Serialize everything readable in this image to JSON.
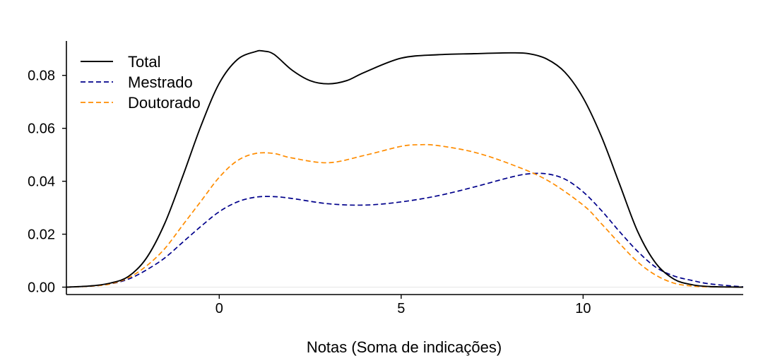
{
  "chart_data": {
    "type": "line",
    "title": "",
    "xlabel": "Notas (Soma de indicações)",
    "ylabel": "",
    "xlim": [
      -4.2,
      14.4
    ],
    "ylim": [
      -0.002,
      0.093
    ],
    "xticks": [
      0,
      5,
      10
    ],
    "xtick_labels": [
      "0",
      "5",
      "10"
    ],
    "yticks": [
      0.0,
      0.02,
      0.04,
      0.06,
      0.08
    ],
    "ytick_labels": [
      "0.00",
      "0.02",
      "0.04",
      "0.06",
      "0.08"
    ],
    "grid": false,
    "legend": "top-left",
    "series": [
      {
        "name": "Total",
        "color": "#000000",
        "dash": "solid",
        "x": [
          -4.2,
          -3.5,
          -3,
          -2.5,
          -2,
          -1.5,
          -1,
          -0.5,
          0,
          0.5,
          1,
          1.2,
          1.5,
          2,
          2.5,
          3,
          3.5,
          4,
          5,
          6,
          7,
          8,
          8.5,
          9,
          9.5,
          10,
          10.5,
          11,
          11.5,
          12,
          12.5,
          13,
          13.5,
          14.4
        ],
        "y": [
          0.0,
          0.0005,
          0.0015,
          0.004,
          0.011,
          0.024,
          0.042,
          0.061,
          0.077,
          0.086,
          0.089,
          0.0892,
          0.088,
          0.082,
          0.078,
          0.0768,
          0.078,
          0.0812,
          0.0865,
          0.0878,
          0.0882,
          0.0885,
          0.0882,
          0.0862,
          0.0812,
          0.0715,
          0.057,
          0.039,
          0.021,
          0.009,
          0.003,
          0.0009,
          0.0002,
          0.0
        ]
      },
      {
        "name": "Mestrado",
        "color": "#00008b",
        "dash": "dashed",
        "x": [
          -4.2,
          -3.5,
          -3,
          -2.5,
          -2,
          -1.5,
          -1,
          -0.5,
          0,
          0.5,
          1,
          1.5,
          2,
          3,
          4,
          5,
          6,
          7,
          8,
          8.5,
          9,
          9.5,
          10,
          10.5,
          11,
          11.5,
          12,
          12.5,
          13,
          13.5,
          14.4
        ],
        "y": [
          0.0,
          0.0004,
          0.0012,
          0.003,
          0.0065,
          0.011,
          0.017,
          0.023,
          0.0285,
          0.0322,
          0.034,
          0.0342,
          0.0335,
          0.0315,
          0.031,
          0.0322,
          0.0345,
          0.0378,
          0.0415,
          0.0428,
          0.0428,
          0.0408,
          0.036,
          0.029,
          0.021,
          0.0135,
          0.0075,
          0.0042,
          0.0025,
          0.0012,
          0.0001
        ]
      },
      {
        "name": "Doutorado",
        "color": "#ff8c00",
        "dash": "dashed",
        "x": [
          -4.2,
          -3.5,
          -3,
          -2.5,
          -2,
          -1.5,
          -1,
          -0.5,
          0,
          0.5,
          1,
          1.5,
          2,
          3,
          4,
          5,
          5.5,
          6,
          7,
          8,
          9,
          10,
          10.5,
          11,
          11.5,
          12,
          12.5,
          13,
          13.5,
          14.4
        ],
        "y": [
          0.0,
          0.0004,
          0.0012,
          0.0035,
          0.008,
          0.0145,
          0.0235,
          0.0325,
          0.0415,
          0.0478,
          0.0505,
          0.0505,
          0.0488,
          0.047,
          0.0498,
          0.0532,
          0.0538,
          0.0535,
          0.051,
          0.0465,
          0.0405,
          0.031,
          0.024,
          0.0165,
          0.0095,
          0.0045,
          0.0015,
          0.0004,
          0.0001,
          0.0
        ]
      }
    ]
  }
}
